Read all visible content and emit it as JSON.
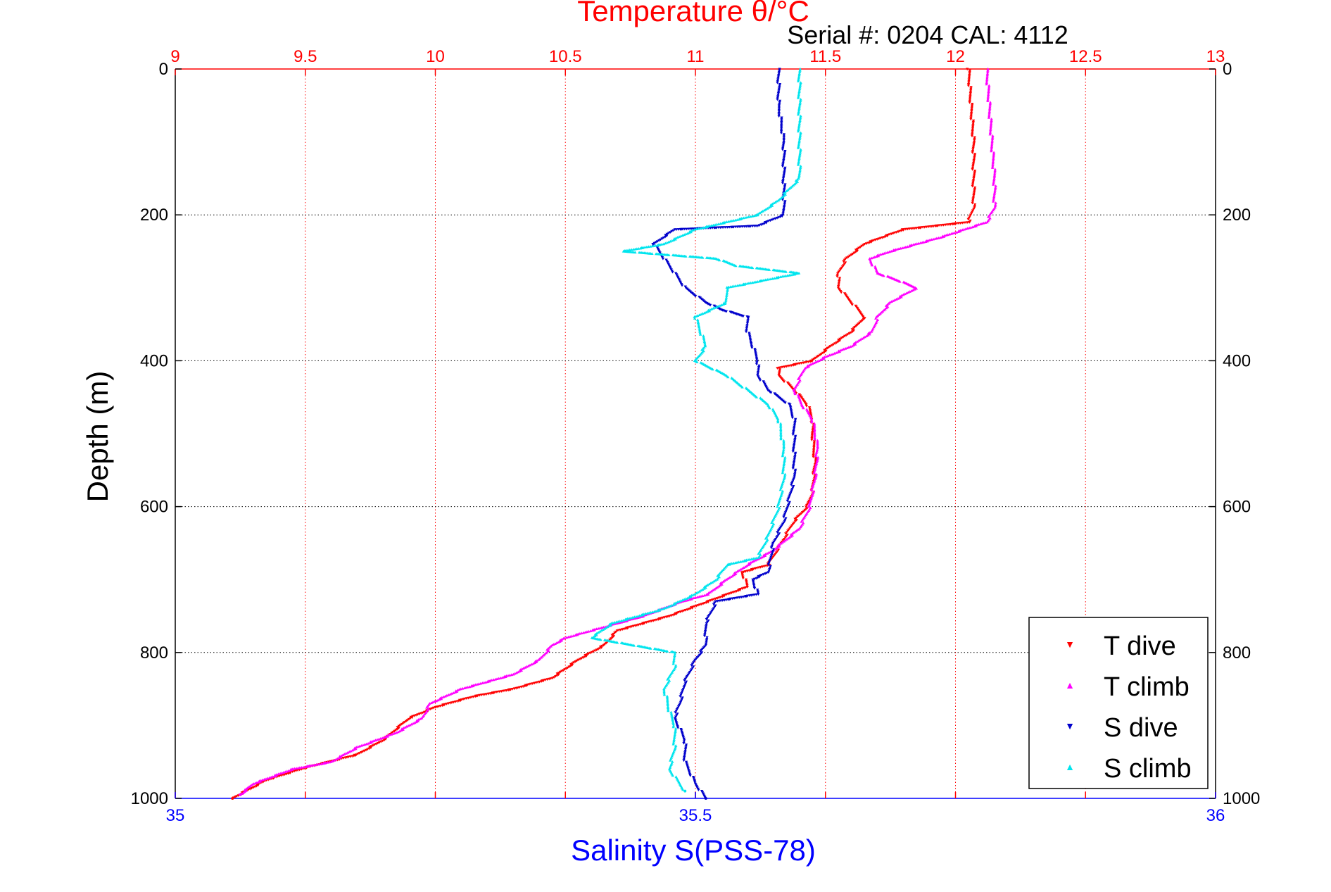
{
  "colors": {
    "temperature_axis": "#ff0000",
    "salinity_axis": "#0000ff",
    "t_dive": "#ff0000",
    "t_climb": "#ff00ff",
    "s_dive": "#0000cc",
    "s_climb": "#00e5ee",
    "grid_temperature": "#ff0000",
    "grid_depth": "#000000",
    "frame": "#000000"
  },
  "chart_data": {
    "type": "scatter",
    "title": "Temperature θ/°C",
    "subtitle": "Serial #: 0204  CAL: 4112",
    "xlabel": "Salinity S(PSS-78)",
    "ylabel": "Depth (m)",
    "x2label": "Temperature θ/°C",
    "xlim": [
      35,
      36
    ],
    "x2lim": [
      9,
      13
    ],
    "ylim": [
      0,
      1000
    ],
    "y_reversed": true,
    "grid": true,
    "legend_position": "bottom-right",
    "xticks": [
      "35",
      "35.5",
      "36"
    ],
    "x2ticks": [
      "9",
      "9.5",
      "10",
      "10.5",
      "11",
      "11.5",
      "12",
      "12.5",
      "13"
    ],
    "yticks": [
      "0",
      "200",
      "400",
      "600",
      "800",
      "1000"
    ],
    "legend": [
      "T dive",
      "T climb",
      "S dive",
      "S climb"
    ],
    "series": [
      {
        "name": "T dive",
        "axis": "temperature",
        "marker": "triangle-down",
        "points": [
          [
            12.05,
            0
          ],
          [
            12.06,
            50
          ],
          [
            12.07,
            100
          ],
          [
            12.07,
            150
          ],
          [
            12.07,
            190
          ],
          [
            12.05,
            210
          ],
          [
            11.8,
            220
          ],
          [
            11.65,
            240
          ],
          [
            11.58,
            260
          ],
          [
            11.55,
            280
          ],
          [
            11.55,
            300
          ],
          [
            11.6,
            320
          ],
          [
            11.65,
            340
          ],
          [
            11.6,
            360
          ],
          [
            11.52,
            380
          ],
          [
            11.45,
            400
          ],
          [
            11.32,
            410
          ],
          [
            11.32,
            420
          ],
          [
            11.38,
            440
          ],
          [
            11.43,
            460
          ],
          [
            11.45,
            480
          ],
          [
            11.45,
            500
          ],
          [
            11.46,
            540
          ],
          [
            11.45,
            580
          ],
          [
            11.43,
            600
          ],
          [
            11.38,
            620
          ],
          [
            11.33,
            650
          ],
          [
            11.28,
            680
          ],
          [
            11.18,
            690
          ],
          [
            11.2,
            710
          ],
          [
            11.05,
            730
          ],
          [
            10.9,
            750
          ],
          [
            10.7,
            770
          ],
          [
            10.65,
            790
          ],
          [
            10.55,
            810
          ],
          [
            10.45,
            835
          ],
          [
            10.3,
            850
          ],
          [
            10.15,
            860
          ],
          [
            10.0,
            875
          ],
          [
            9.9,
            890
          ],
          [
            9.8,
            920
          ],
          [
            9.7,
            940
          ],
          [
            9.5,
            958
          ],
          [
            9.35,
            975
          ],
          [
            9.22,
            1000
          ]
        ]
      },
      {
        "name": "T climb",
        "axis": "temperature",
        "marker": "triangle-up",
        "points": [
          [
            12.12,
            0
          ],
          [
            12.13,
            50
          ],
          [
            12.14,
            100
          ],
          [
            12.15,
            150
          ],
          [
            12.15,
            190
          ],
          [
            12.12,
            210
          ],
          [
            11.95,
            230
          ],
          [
            11.75,
            250
          ],
          [
            11.67,
            260
          ],
          [
            11.7,
            280
          ],
          [
            11.78,
            290
          ],
          [
            11.85,
            300
          ],
          [
            11.75,
            320
          ],
          [
            11.7,
            340
          ],
          [
            11.68,
            360
          ],
          [
            11.6,
            380
          ],
          [
            11.5,
            395
          ],
          [
            11.42,
            410
          ],
          [
            11.38,
            440
          ],
          [
            11.41,
            460
          ],
          [
            11.45,
            480
          ],
          [
            11.47,
            520
          ],
          [
            11.46,
            560
          ],
          [
            11.44,
            600
          ],
          [
            11.4,
            630
          ],
          [
            11.3,
            660
          ],
          [
            11.2,
            680
          ],
          [
            11.12,
            700
          ],
          [
            11.05,
            720
          ],
          [
            10.95,
            730
          ],
          [
            10.8,
            750
          ],
          [
            10.6,
            770
          ],
          [
            10.5,
            780
          ],
          [
            10.45,
            790
          ],
          [
            10.4,
            810
          ],
          [
            10.3,
            830
          ],
          [
            10.1,
            850
          ],
          [
            9.98,
            870
          ],
          [
            9.95,
            890
          ],
          [
            9.85,
            910
          ],
          [
            9.7,
            930
          ],
          [
            9.6,
            950
          ],
          [
            9.45,
            960
          ],
          [
            9.3,
            980
          ],
          [
            9.25,
            995
          ]
        ]
      },
      {
        "name": "S dive",
        "axis": "salinity",
        "marker": "triangle-down",
        "points": [
          [
            35.58,
            0
          ],
          [
            35.58,
            50
          ],
          [
            35.585,
            100
          ],
          [
            35.585,
            150
          ],
          [
            35.585,
            200
          ],
          [
            35.56,
            215
          ],
          [
            35.48,
            220
          ],
          [
            35.46,
            240
          ],
          [
            35.47,
            260
          ],
          [
            35.48,
            280
          ],
          [
            35.49,
            300
          ],
          [
            35.51,
            320
          ],
          [
            35.525,
            330
          ],
          [
            35.55,
            340
          ],
          [
            35.55,
            360
          ],
          [
            35.555,
            380
          ],
          [
            35.56,
            400
          ],
          [
            35.56,
            420
          ],
          [
            35.57,
            440
          ],
          [
            35.59,
            460
          ],
          [
            35.595,
            480
          ],
          [
            35.595,
            520
          ],
          [
            35.595,
            560
          ],
          [
            35.59,
            590
          ],
          [
            35.585,
            620
          ],
          [
            35.575,
            650
          ],
          [
            35.57,
            690
          ],
          [
            35.555,
            700
          ],
          [
            35.56,
            720
          ],
          [
            35.52,
            730
          ],
          [
            35.51,
            760
          ],
          [
            35.51,
            790
          ],
          [
            35.5,
            810
          ],
          [
            35.49,
            840
          ],
          [
            35.485,
            870
          ],
          [
            35.48,
            890
          ],
          [
            35.49,
            920
          ],
          [
            35.49,
            950
          ],
          [
            35.5,
            980
          ],
          [
            35.51,
            1000
          ]
        ]
      },
      {
        "name": "S climb",
        "axis": "salinity",
        "marker": "triangle-up",
        "points": [
          [
            35.6,
            0
          ],
          [
            35.6,
            50
          ],
          [
            35.6,
            100
          ],
          [
            35.6,
            150
          ],
          [
            35.58,
            180
          ],
          [
            35.56,
            200
          ],
          [
            35.5,
            220
          ],
          [
            35.47,
            240
          ],
          [
            35.43,
            250
          ],
          [
            35.52,
            260
          ],
          [
            35.54,
            270
          ],
          [
            35.6,
            280
          ],
          [
            35.53,
            300
          ],
          [
            35.53,
            320
          ],
          [
            35.5,
            340
          ],
          [
            35.51,
            380
          ],
          [
            35.5,
            400
          ],
          [
            35.53,
            420
          ],
          [
            35.55,
            440
          ],
          [
            35.57,
            460
          ],
          [
            35.58,
            480
          ],
          [
            35.585,
            520
          ],
          [
            35.585,
            560
          ],
          [
            35.58,
            600
          ],
          [
            35.57,
            640
          ],
          [
            35.56,
            670
          ],
          [
            35.53,
            680
          ],
          [
            35.52,
            700
          ],
          [
            35.5,
            720
          ],
          [
            35.47,
            740
          ],
          [
            35.42,
            760
          ],
          [
            35.4,
            780
          ],
          [
            35.48,
            800
          ],
          [
            35.48,
            820
          ],
          [
            35.47,
            850
          ],
          [
            35.475,
            880
          ],
          [
            35.48,
            900
          ],
          [
            35.48,
            930
          ],
          [
            35.475,
            960
          ],
          [
            35.49,
            990
          ]
        ]
      }
    ]
  }
}
